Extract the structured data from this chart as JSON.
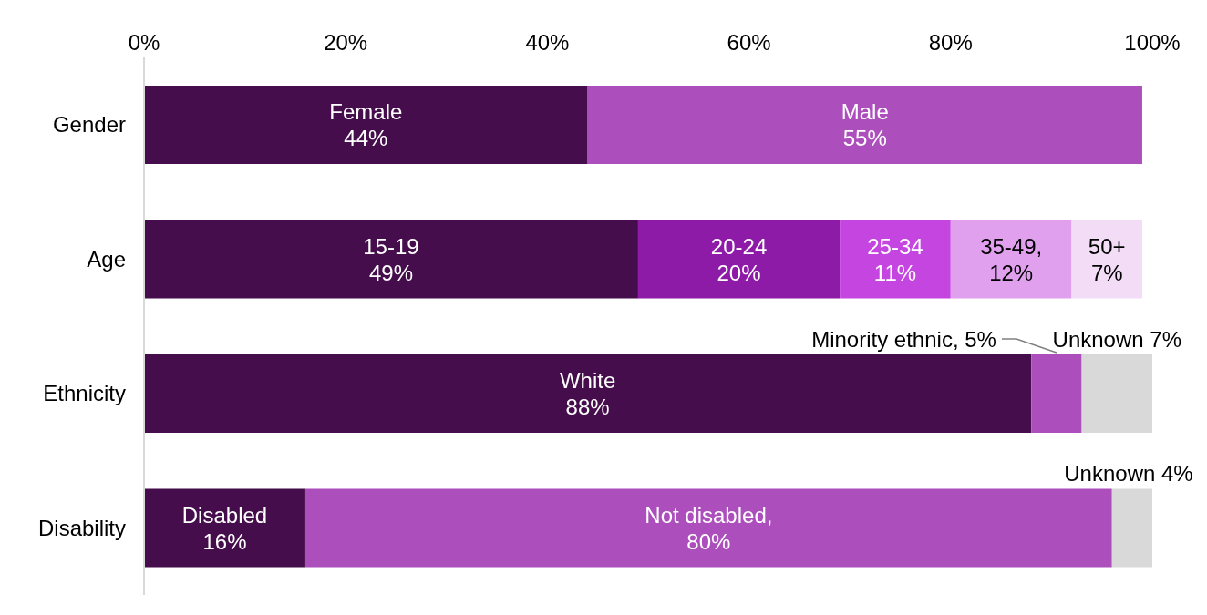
{
  "chart_data": {
    "type": "bar",
    "orientation": "horizontal",
    "stacked": true,
    "categories": [
      "Gender",
      "Age",
      "Ethnicity",
      "Disability"
    ],
    "series": [
      {
        "values": [
          44,
          49,
          88,
          16
        ],
        "colors": [
          "#450d4b",
          "#450d4b",
          "#450d4b",
          "#450d4b"
        ],
        "value_labels": [
          "Female\n44%",
          "15-19\n49%",
          "White\n88%",
          "Disabled\n16%"
        ]
      },
      {
        "values": [
          55,
          20,
          5,
          80
        ],
        "colors": [
          "#ac4fbd",
          "#8e1aa8",
          "#ac4fbd",
          "#ac4fbd"
        ],
        "value_labels": [
          "Male\n55%",
          "20-24\n20%",
          "Minority ethnic, 5%",
          "Not disabled,\n80%"
        ]
      },
      {
        "values": [
          null,
          11,
          7,
          4
        ],
        "colors": [
          null,
          "#c545e0",
          "#d9d9d9",
          "#d9d9d9"
        ],
        "value_labels": [
          null,
          "25-34\n11%",
          "Unknown 7%",
          "Unknown 4%"
        ]
      },
      {
        "values": [
          null,
          12,
          null,
          null
        ],
        "colors": [
          null,
          "#e0a0ee",
          null,
          null
        ],
        "value_labels": [
          null,
          "35-49,\n12%",
          null,
          null
        ]
      },
      {
        "values": [
          null,
          7,
          null,
          null
        ],
        "colors": [
          null,
          "#f2dcf6",
          null,
          null
        ],
        "value_labels": [
          null,
          "50+\n7%",
          null,
          null
        ]
      }
    ],
    "xlim": [
      0,
      100
    ],
    "xticks": [
      {
        "value": 0,
        "label": "0%"
      },
      {
        "value": 20,
        "label": "20%"
      },
      {
        "value": 40,
        "label": "40%"
      },
      {
        "value": 60,
        "label": "60%"
      },
      {
        "value": 80,
        "label": "80%"
      },
      {
        "value": 100,
        "label": "100%"
      }
    ],
    "grid": false,
    "legend": false
  }
}
